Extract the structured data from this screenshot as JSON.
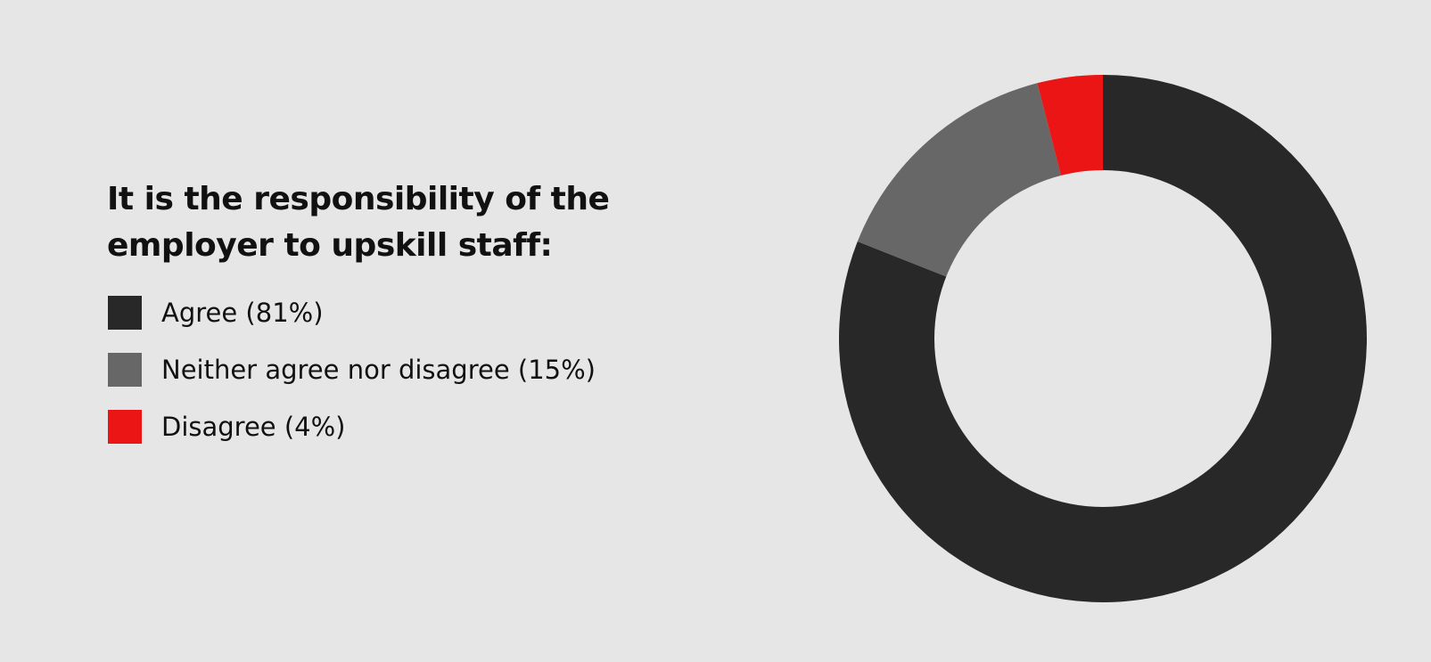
{
  "chart_data": {
    "type": "pie",
    "variant": "donut",
    "title": "It is the responsibility of the employer to upskill staff:",
    "categories": [
      "Agree (81%)",
      "Neither agree nor disagree (15%)",
      "Disagree (4%)"
    ],
    "values": [
      81,
      15,
      4
    ],
    "colors": [
      "#282828",
      "#676767",
      "#ec1515"
    ],
    "legend_position": "left",
    "start_angle": "top",
    "direction": "clockwise"
  },
  "colors": {
    "background": "#e6e6e6",
    "hole": "#e6e6e6",
    "text": "#111111"
  }
}
